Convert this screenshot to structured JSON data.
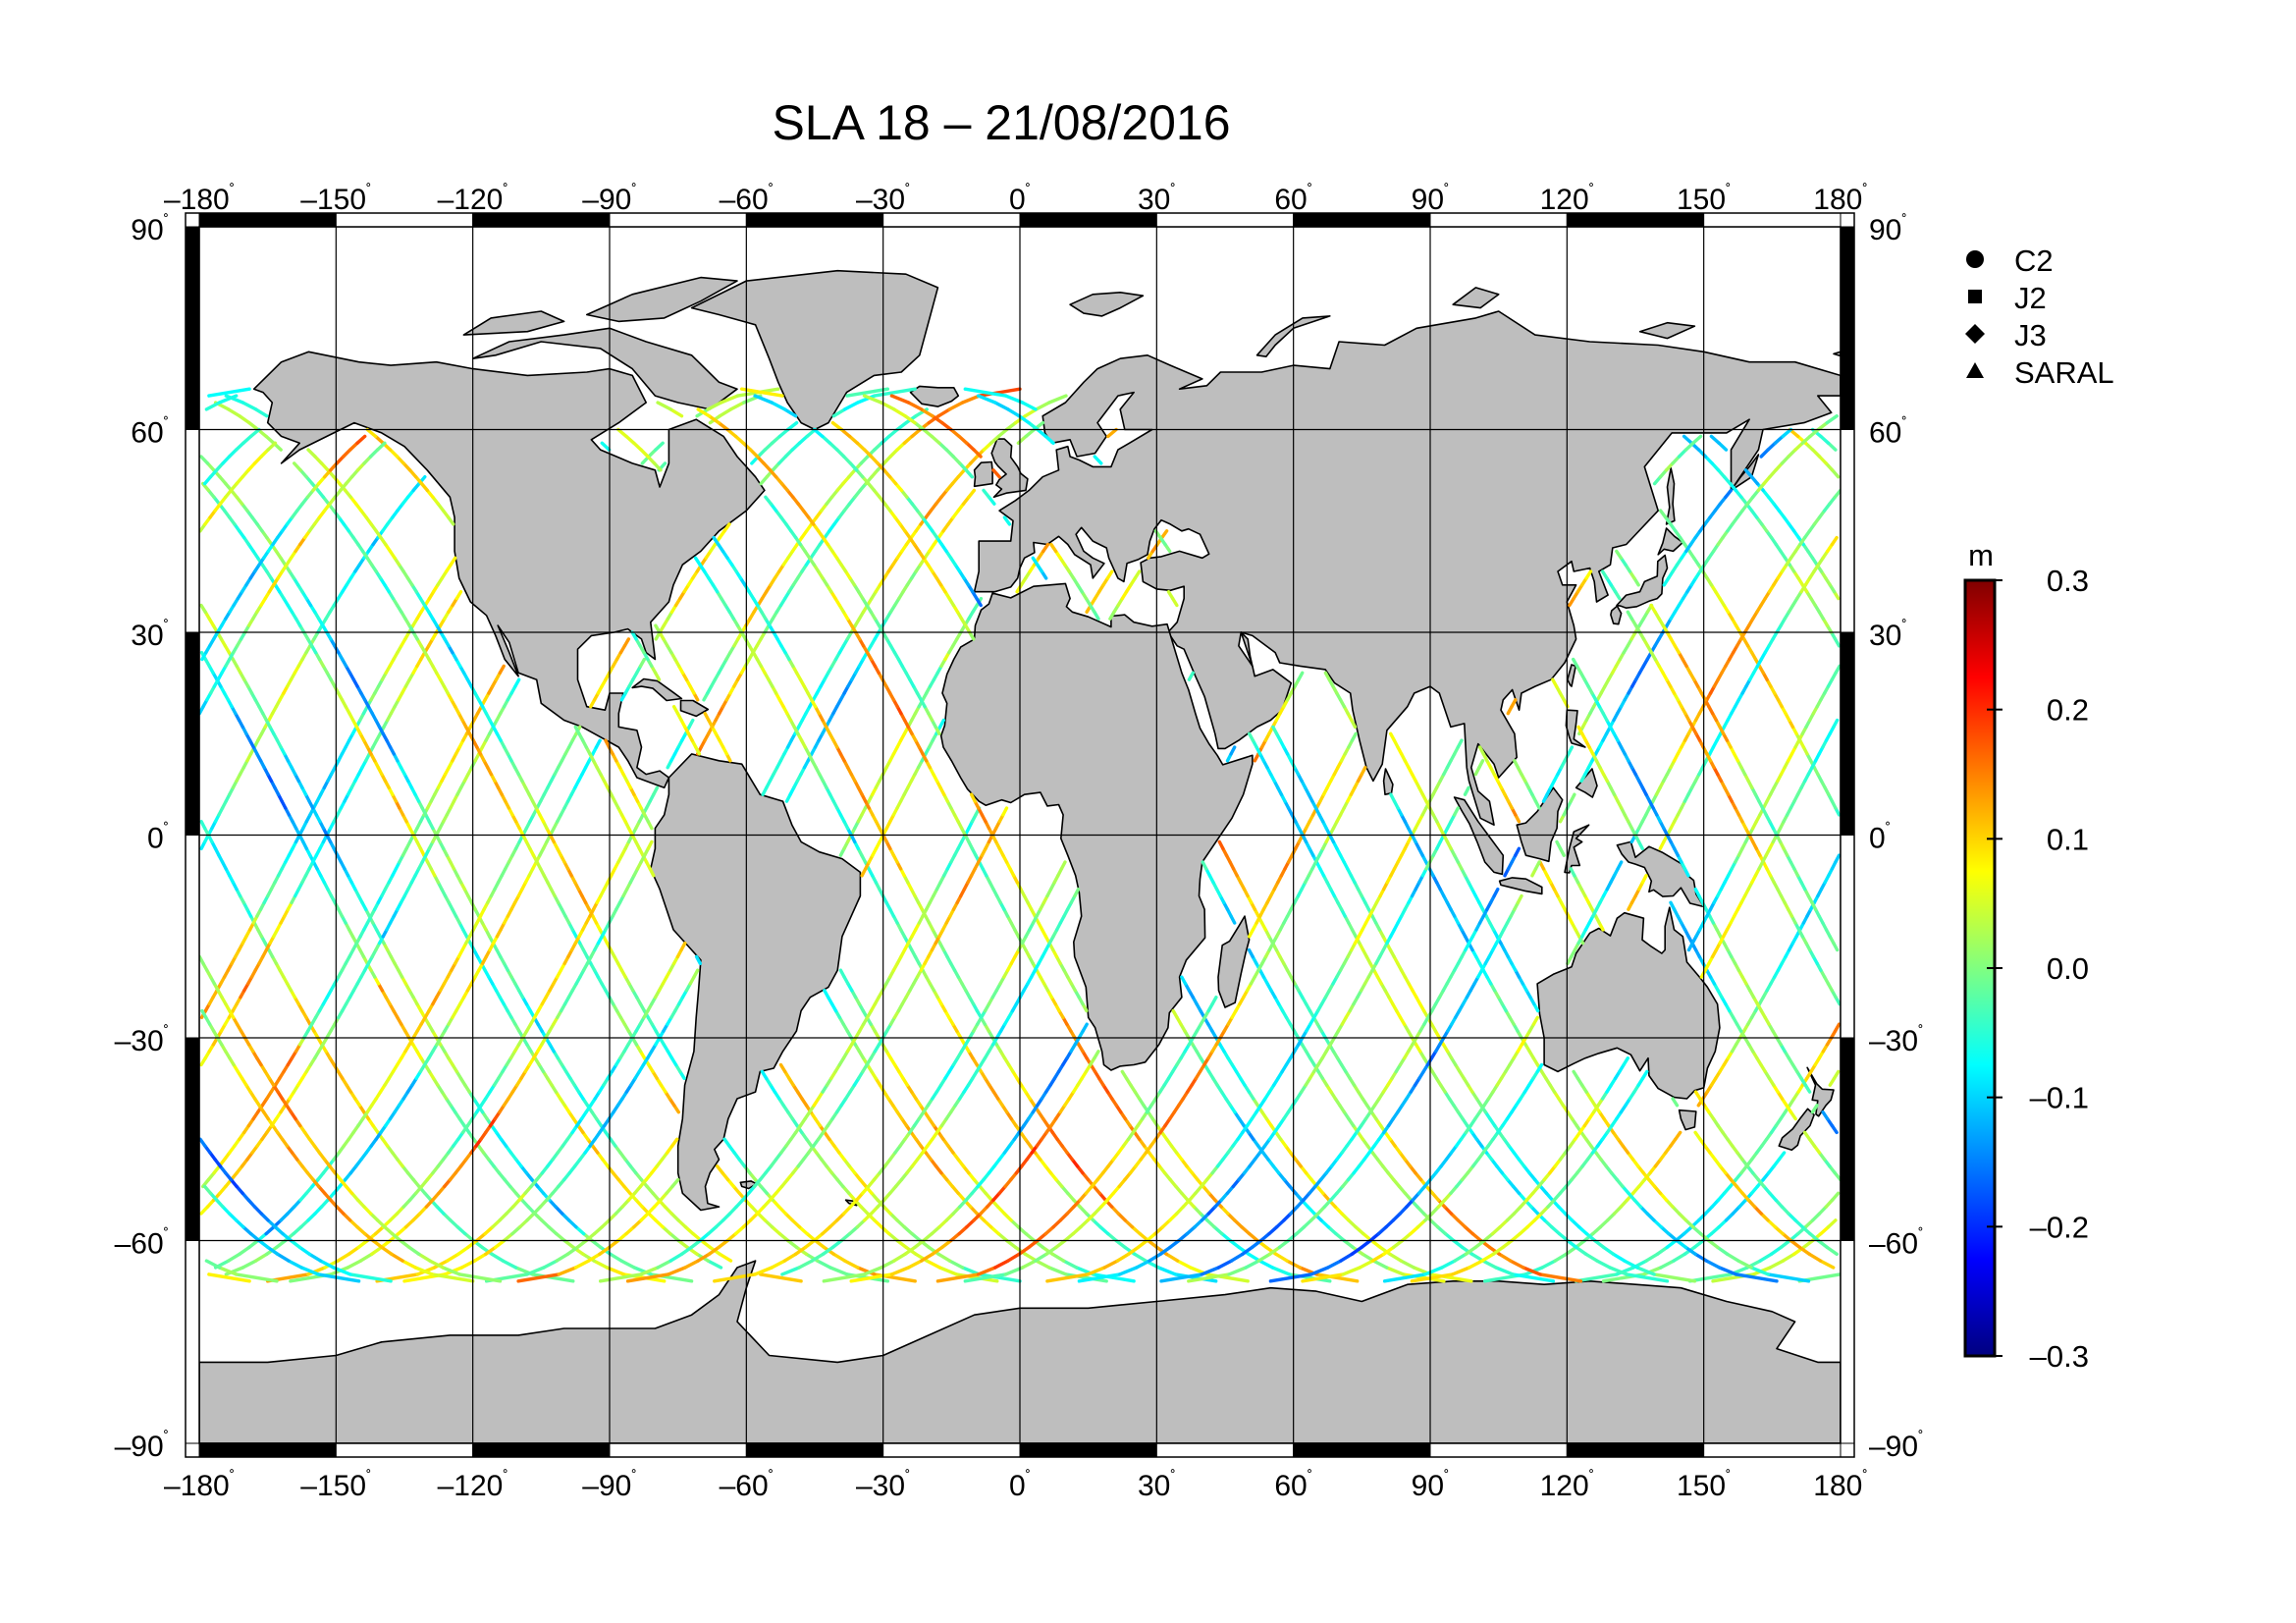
{
  "chart_data": {
    "type": "scatter",
    "title": "SLA 18 – 21/08/2016",
    "map_projection": "equirectangular",
    "x_axis": {
      "range": [
        -180,
        180
      ],
      "ticks": [
        -180,
        -150,
        -120,
        -90,
        -60,
        -30,
        0,
        30,
        60,
        90,
        120,
        150,
        180
      ],
      "tick_labels": [
        "–180",
        "–150",
        "–120",
        "–90",
        "–60",
        "–30",
        "0",
        "30",
        "60",
        "90",
        "120",
        "150",
        "180"
      ],
      "unit_symbol": "˚"
    },
    "y_axis": {
      "range": [
        -90,
        90
      ],
      "ticks": [
        90,
        60,
        30,
        0,
        -30,
        -60,
        -90
      ],
      "tick_labels": [
        "90",
        "60",
        "30",
        "0",
        "–30",
        "–60",
        "–90"
      ],
      "unit_symbol": "˚"
    },
    "grid": true,
    "legend": {
      "placement": "right",
      "entries": [
        {
          "name": "C2",
          "marker": "circle"
        },
        {
          "name": "J2",
          "marker": "square"
        },
        {
          "name": "J3",
          "marker": "diamond"
        },
        {
          "name": "SARAL",
          "marker": "triangle"
        }
      ]
    },
    "colorbar": {
      "unit": "m",
      "range": [
        -0.3,
        0.3
      ],
      "ticks": [
        0.3,
        0.2,
        0.1,
        0.0,
        -0.1,
        -0.2,
        -0.3
      ],
      "tick_labels": [
        "0.3",
        "0.2",
        "0.1",
        "0.0",
        "–0.1",
        "–0.2",
        "–0.3"
      ],
      "colormap": [
        "#000080",
        "#0000ff",
        "#0080ff",
        "#00ffff",
        "#80ff80",
        "#ffff00",
        "#ff8000",
        "#ff0000",
        "#800000"
      ]
    },
    "tracks": {
      "description_lat_limits": [
        -66,
        66
      ],
      "pass_offsets_deg": [
        -178,
        -164,
        -152,
        -139,
        -128,
        -115,
        -103,
        -91,
        -80,
        -67,
        -55,
        -43,
        -30,
        -18,
        -6,
        7,
        19,
        31,
        43,
        56,
        68,
        80,
        93,
        105,
        117,
        129,
        142,
        154,
        166
      ],
      "mean_sla_m": 0.0
    }
  },
  "colors": {
    "land": "#bebebe",
    "ocean": "#ffffff",
    "frame": "#000000",
    "grid": "#000000"
  }
}
